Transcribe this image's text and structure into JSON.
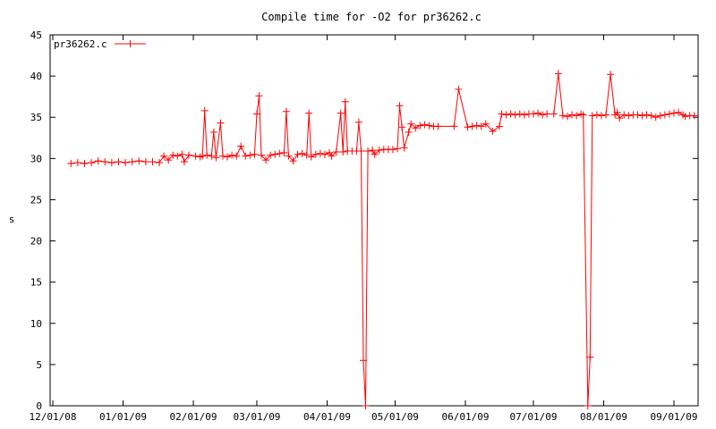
{
  "chart_data": {
    "type": "line",
    "title": "Compile time for -O2 for pr36262.c",
    "xlabel": "",
    "ylabel": "s",
    "ylim": [
      0,
      45
    ],
    "xlim": [
      "2008-12-01",
      "2009-09-01"
    ],
    "grid": false,
    "legend_position": "top-left",
    "y_ticks": [
      0,
      5,
      10,
      15,
      20,
      25,
      30,
      35,
      40,
      45
    ],
    "x_ticks": [
      {
        "date": "2008-12-01",
        "label": "12/01/08"
      },
      {
        "date": "2009-01-01",
        "label": "01/01/09"
      },
      {
        "date": "2009-02-01",
        "label": "02/01/09"
      },
      {
        "date": "2009-03-01",
        "label": "03/01/09"
      },
      {
        "date": "2009-04-01",
        "label": "04/01/09"
      },
      {
        "date": "2009-05-01",
        "label": "05/01/09"
      },
      {
        "date": "2009-06-01",
        "label": "06/01/09"
      },
      {
        "date": "2009-07-01",
        "label": "07/01/09"
      },
      {
        "date": "2009-08-01",
        "label": "08/01/09"
      },
      {
        "date": "2009-09-01",
        "label": "09/01/09"
      }
    ],
    "series": [
      {
        "name": "pr36262.c",
        "color": "#ff0000",
        "marker": "plus",
        "points": [
          [
            "2008-12-09",
            29.4
          ],
          [
            "2008-12-12",
            29.5
          ],
          [
            "2008-12-15",
            29.4
          ],
          [
            "2008-12-18",
            29.5
          ],
          [
            "2008-12-21",
            29.7
          ],
          [
            "2008-12-24",
            29.6
          ],
          [
            "2008-12-27",
            29.5
          ],
          [
            "2008-12-30",
            29.6
          ],
          [
            "2009-01-02",
            29.5
          ],
          [
            "2009-01-05",
            29.6
          ],
          [
            "2009-01-08",
            29.7
          ],
          [
            "2009-01-11",
            29.6
          ],
          [
            "2009-01-14",
            29.6
          ],
          [
            "2009-01-17",
            29.5
          ],
          [
            "2009-01-19",
            30.3
          ],
          [
            "2009-01-21",
            29.8
          ],
          [
            "2009-01-23",
            30.4
          ],
          [
            "2009-01-25",
            30.3
          ],
          [
            "2009-01-27",
            30.5
          ],
          [
            "2009-01-28",
            29.6
          ],
          [
            "2009-01-30",
            30.4
          ],
          [
            "2009-02-02",
            30.3
          ],
          [
            "2009-02-04",
            30.2
          ],
          [
            "2009-02-05",
            30.3
          ],
          [
            "2009-02-06",
            35.8
          ],
          [
            "2009-02-07",
            30.4
          ],
          [
            "2009-02-09",
            30.3
          ],
          [
            "2009-02-10",
            33.2
          ],
          [
            "2009-02-11",
            30.1
          ],
          [
            "2009-02-13",
            34.3
          ],
          [
            "2009-02-14",
            30.3
          ],
          [
            "2009-02-16",
            30.2
          ],
          [
            "2009-02-18",
            30.4
          ],
          [
            "2009-02-20",
            30.3
          ],
          [
            "2009-02-22",
            31.5
          ],
          [
            "2009-02-24",
            30.3
          ],
          [
            "2009-02-26",
            30.4
          ],
          [
            "2009-02-28",
            30.5
          ],
          [
            "2009-03-01",
            35.4
          ],
          [
            "2009-03-02",
            37.6
          ],
          [
            "2009-03-03",
            30.4
          ],
          [
            "2009-03-05",
            29.8
          ],
          [
            "2009-03-07",
            30.4
          ],
          [
            "2009-03-09",
            30.5
          ],
          [
            "2009-03-11",
            30.6
          ],
          [
            "2009-03-13",
            30.7
          ],
          [
            "2009-03-14",
            35.7
          ],
          [
            "2009-03-15",
            30.3
          ],
          [
            "2009-03-17",
            29.7
          ],
          [
            "2009-03-19",
            30.5
          ],
          [
            "2009-03-21",
            30.6
          ],
          [
            "2009-03-23",
            30.4
          ],
          [
            "2009-03-24",
            35.5
          ],
          [
            "2009-03-25",
            30.2
          ],
          [
            "2009-03-27",
            30.5
          ],
          [
            "2009-03-29",
            30.6
          ],
          [
            "2009-03-31",
            30.5
          ],
          [
            "2009-04-02",
            30.7
          ],
          [
            "2009-04-03",
            30.3
          ],
          [
            "2009-04-05",
            30.8
          ],
          [
            "2009-04-07",
            35.5
          ],
          [
            "2009-04-08",
            30.8
          ],
          [
            "2009-04-09",
            36.9
          ],
          [
            "2009-04-10",
            30.9
          ],
          [
            "2009-04-12",
            30.9
          ],
          [
            "2009-04-14",
            30.9
          ],
          [
            "2009-04-15",
            34.4
          ],
          [
            "2009-04-16",
            30.9
          ],
          [
            "2009-04-17",
            5.5
          ],
          [
            "2009-04-18",
            0.0
          ],
          [
            "2009-04-19",
            30.9
          ],
          [
            "2009-04-21",
            31.0
          ],
          [
            "2009-04-22",
            30.5
          ],
          [
            "2009-04-24",
            31.0
          ],
          [
            "2009-04-26",
            31.1
          ],
          [
            "2009-04-28",
            31.1
          ],
          [
            "2009-04-30",
            31.1
          ],
          [
            "2009-05-02",
            31.2
          ],
          [
            "2009-05-03",
            36.4
          ],
          [
            "2009-05-04",
            33.8
          ],
          [
            "2009-05-05",
            31.3
          ],
          [
            "2009-05-07",
            33.2
          ],
          [
            "2009-05-08",
            34.2
          ],
          [
            "2009-05-10",
            33.7
          ],
          [
            "2009-05-12",
            34.0
          ],
          [
            "2009-05-14",
            34.1
          ],
          [
            "2009-05-16",
            34.0
          ],
          [
            "2009-05-18",
            33.9
          ],
          [
            "2009-05-20",
            33.9
          ],
          [
            "2009-05-27",
            33.9
          ],
          [
            "2009-05-29",
            38.4
          ],
          [
            "2009-06-02",
            33.8
          ],
          [
            "2009-06-04",
            33.9
          ],
          [
            "2009-06-06",
            34.0
          ],
          [
            "2009-06-08",
            33.9
          ],
          [
            "2009-06-10",
            34.2
          ],
          [
            "2009-06-13",
            33.3
          ],
          [
            "2009-06-16",
            33.9
          ],
          [
            "2009-06-17",
            35.4
          ],
          [
            "2009-06-19",
            35.3
          ],
          [
            "2009-06-21",
            35.4
          ],
          [
            "2009-06-23",
            35.3
          ],
          [
            "2009-06-25",
            35.4
          ],
          [
            "2009-06-27",
            35.3
          ],
          [
            "2009-06-29",
            35.4
          ],
          [
            "2009-07-01",
            35.4
          ],
          [
            "2009-07-03",
            35.5
          ],
          [
            "2009-07-05",
            35.3
          ],
          [
            "2009-07-07",
            35.4
          ],
          [
            "2009-07-10",
            35.4
          ],
          [
            "2009-07-12",
            40.3
          ],
          [
            "2009-07-14",
            35.2
          ],
          [
            "2009-07-16",
            35.1
          ],
          [
            "2009-07-18",
            35.3
          ],
          [
            "2009-07-20",
            35.2
          ],
          [
            "2009-07-22",
            35.4
          ],
          [
            "2009-07-23",
            35.3
          ],
          [
            "2009-07-25",
            0.0
          ],
          [
            "2009-07-26",
            5.9
          ],
          [
            "2009-07-27",
            35.2
          ],
          [
            "2009-07-29",
            35.3
          ],
          [
            "2009-07-31",
            35.2
          ],
          [
            "2009-08-02",
            35.3
          ],
          [
            "2009-08-04",
            40.2
          ],
          [
            "2009-08-06",
            35.3
          ],
          [
            "2009-08-07",
            35.6
          ],
          [
            "2009-08-08",
            34.9
          ],
          [
            "2009-08-10",
            35.3
          ],
          [
            "2009-08-12",
            35.2
          ],
          [
            "2009-08-14",
            35.3
          ],
          [
            "2009-08-16",
            35.3
          ],
          [
            "2009-08-18",
            35.2
          ],
          [
            "2009-08-20",
            35.3
          ],
          [
            "2009-08-22",
            35.2
          ],
          [
            "2009-08-24",
            35.0
          ],
          [
            "2009-08-26",
            35.2
          ],
          [
            "2009-08-28",
            35.3
          ],
          [
            "2009-08-30",
            35.4
          ],
          [
            "2009-09-01",
            35.5
          ],
          [
            "2009-09-03",
            35.6
          ],
          [
            "2009-09-05",
            35.3
          ],
          [
            "2009-09-06",
            35.1
          ],
          [
            "2009-09-08",
            35.2
          ],
          [
            "2009-09-10",
            35.2
          ]
        ]
      }
    ]
  }
}
